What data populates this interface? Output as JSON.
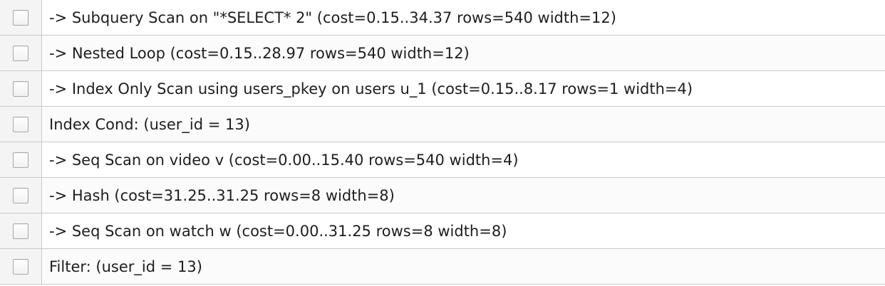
{
  "plan_rows": [
    {
      "text": "-> Subquery Scan on \"*SELECT* 2\" (cost=0.15..34.37 rows=540 width=12)",
      "checked": false
    },
    {
      "text": "-> Nested Loop (cost=0.15..28.97 rows=540 width=12)",
      "checked": false
    },
    {
      "text": "-> Index Only Scan using users_pkey on users u_1 (cost=0.15..8.17 rows=1 width=4)",
      "checked": false
    },
    {
      "text": "Index Cond: (user_id = 13)",
      "checked": false
    },
    {
      "text": "-> Seq Scan on video v (cost=0.00..15.40 rows=540 width=4)",
      "checked": false
    },
    {
      "text": "-> Hash (cost=31.25..31.25 rows=8 width=8)",
      "checked": false
    },
    {
      "text": "-> Seq Scan on watch w (cost=0.00..31.25 rows=8 width=8)",
      "checked": false
    },
    {
      "text": "Filter: (user_id = 13)",
      "checked": false
    }
  ]
}
